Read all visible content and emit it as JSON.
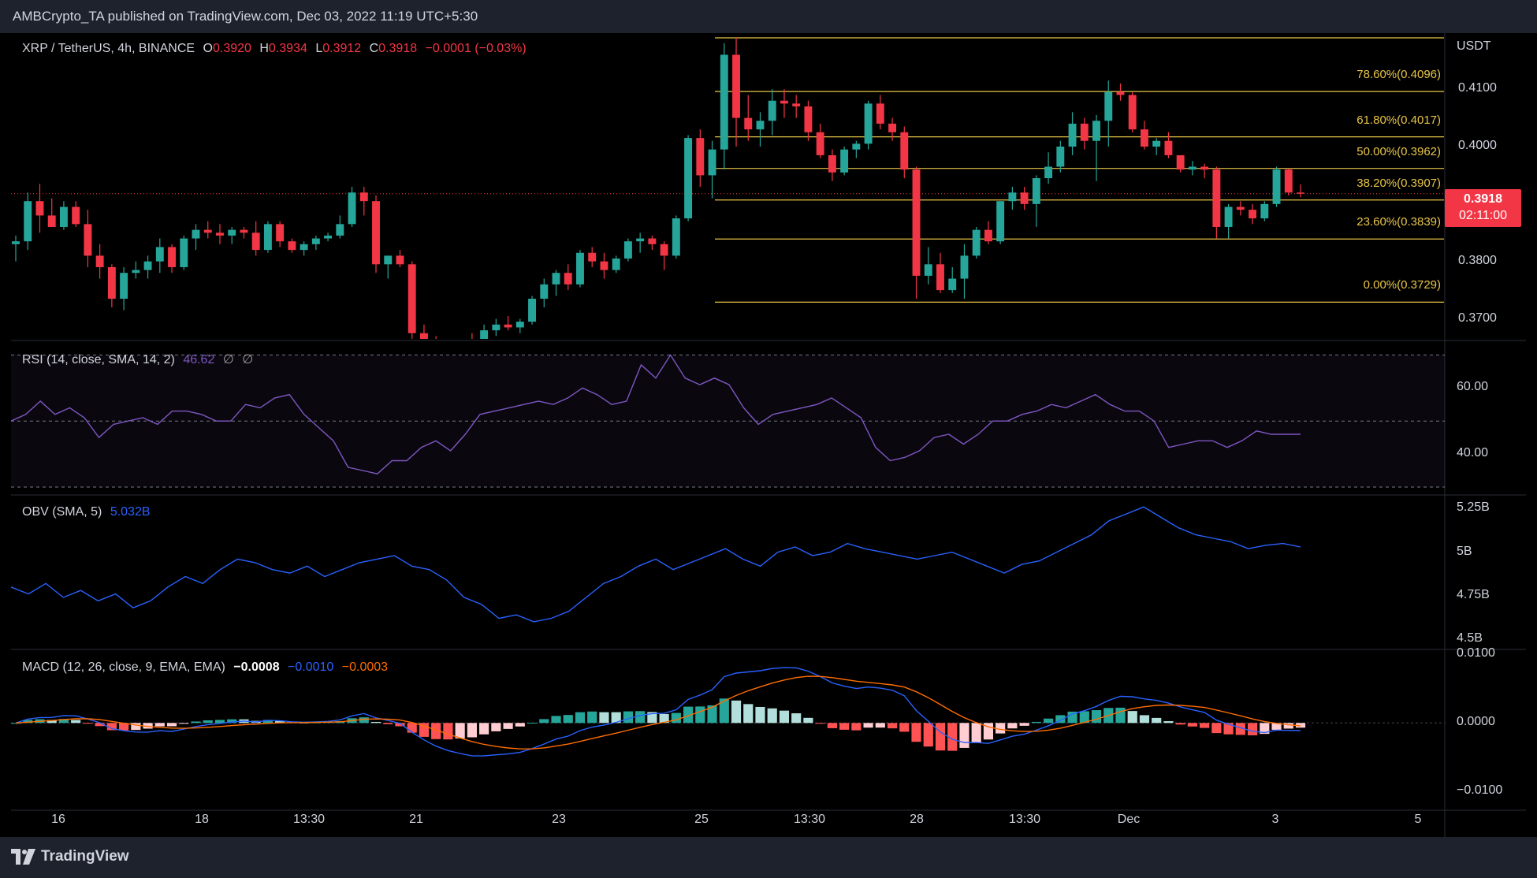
{
  "header": {
    "published_text": "AMBCrypto_TA published on TradingView.com, Dec 03, 2022 11:19 UTC+5:30"
  },
  "footer": {
    "brand": "TradingView"
  },
  "price_legend": {
    "symbol": "XRP / TetherUS, 4h, BINANCE",
    "o_label": "O",
    "o_value": "0.3920",
    "h_label": "H",
    "h_value": "0.3934",
    "l_label": "L",
    "l_value": "0.3912",
    "c_label": "C",
    "c_value": "0.3918",
    "change": "−0.0001 (−0.03%)"
  },
  "rsi_legend": {
    "label": "RSI (14, close, SMA, 14, 2)",
    "value": "46.62",
    "na1": "∅",
    "na2": "∅"
  },
  "obv_legend": {
    "label": "OBV (SMA, 5)",
    "value": "5.032B"
  },
  "macd_legend": {
    "label": "MACD (12, 26, close, 9, EMA, EMA)",
    "hist": "−0.0008",
    "macd": "−0.0010",
    "signal": "−0.0003"
  },
  "last_price_badge": {
    "price": "0.3918",
    "countdown": "02:11:00"
  },
  "colors": {
    "up": "#26a69a",
    "down": "#f23645",
    "fib": "#e8c547",
    "rsi": "#7e57c2",
    "obv": "#2962ff",
    "macd": "#2962ff",
    "signal": "#ff6d00",
    "hist_up_strong": "#26a69a",
    "hist_up_weak": "#b2dfdb",
    "hist_down_strong": "#ff5252",
    "hist_down_weak": "#ffcdd2"
  },
  "chart_data": [
    {
      "type": "candlestick",
      "title": "XRP / TetherUS, 4h, BINANCE",
      "currency": "USDT",
      "ylim": [
        0.3665,
        0.4195
      ],
      "y_ticks": [
        "0.4100",
        "0.4000",
        "0.3800",
        "0.3700"
      ],
      "x_ticks": [
        "16",
        "18",
        "13:30",
        "21",
        "23",
        "25",
        "13:30",
        "28",
        "13:30",
        "Dec",
        "3",
        "5"
      ],
      "fib_levels": [
        {
          "label": "78.60%(0.4096)",
          "value": 0.4096
        },
        {
          "label": "61.80%(0.4017)",
          "value": 0.4017
        },
        {
          "label": "50.00%(0.3962)",
          "value": 0.3962
        },
        {
          "label": "38.20%(0.3907)",
          "value": 0.3907
        },
        {
          "label": "23.60%(0.3839)",
          "value": 0.3839
        },
        {
          "label": "0.00%(0.3729)",
          "value": 0.3729
        }
      ],
      "last_price": 0.3918,
      "candles_ohlc": [
        [
          0.383,
          0.3845,
          0.38,
          0.3835
        ],
        [
          0.3835,
          0.392,
          0.382,
          0.3905
        ],
        [
          0.3905,
          0.3935,
          0.385,
          0.388
        ],
        [
          0.388,
          0.391,
          0.386,
          0.386
        ],
        [
          0.386,
          0.3905,
          0.3855,
          0.3895
        ],
        [
          0.3895,
          0.3905,
          0.386,
          0.3865
        ],
        [
          0.3865,
          0.389,
          0.379,
          0.381
        ],
        [
          0.381,
          0.383,
          0.377,
          0.379
        ],
        [
          0.379,
          0.3795,
          0.372,
          0.3735
        ],
        [
          0.3735,
          0.379,
          0.3715,
          0.378
        ],
        [
          0.378,
          0.38,
          0.377,
          0.3785
        ],
        [
          0.3785,
          0.381,
          0.377,
          0.38
        ],
        [
          0.38,
          0.384,
          0.378,
          0.3825
        ],
        [
          0.3825,
          0.383,
          0.378,
          0.379
        ],
        [
          0.379,
          0.3845,
          0.3785,
          0.384
        ],
        [
          0.384,
          0.3865,
          0.382,
          0.3855
        ],
        [
          0.3855,
          0.387,
          0.384,
          0.385
        ],
        [
          0.385,
          0.3865,
          0.383,
          0.3845
        ],
        [
          0.3845,
          0.386,
          0.383,
          0.3855
        ],
        [
          0.3855,
          0.386,
          0.384,
          0.385
        ],
        [
          0.385,
          0.387,
          0.381,
          0.382
        ],
        [
          0.382,
          0.387,
          0.3815,
          0.3865
        ],
        [
          0.3865,
          0.387,
          0.3825,
          0.3835
        ],
        [
          0.3835,
          0.384,
          0.3815,
          0.382
        ],
        [
          0.382,
          0.3835,
          0.381,
          0.383
        ],
        [
          0.383,
          0.3845,
          0.382,
          0.384
        ],
        [
          0.384,
          0.385,
          0.3835,
          0.3845
        ],
        [
          0.3845,
          0.388,
          0.384,
          0.3865
        ],
        [
          0.3865,
          0.393,
          0.386,
          0.392
        ],
        [
          0.392,
          0.393,
          0.388,
          0.3905
        ],
        [
          0.3905,
          0.3915,
          0.378,
          0.3795
        ],
        [
          0.3795,
          0.381,
          0.377,
          0.381
        ],
        [
          0.381,
          0.382,
          0.379,
          0.3795
        ],
        [
          0.3795,
          0.38,
          0.366,
          0.3675
        ],
        [
          0.3675,
          0.369,
          0.365,
          0.366
        ],
        [
          0.366,
          0.367,
          0.364,
          0.365
        ],
        [
          0.365,
          0.3665,
          0.364,
          0.3655
        ],
        [
          0.3655,
          0.3665,
          0.365,
          0.366
        ],
        [
          0.366,
          0.3675,
          0.3645,
          0.365
        ],
        [
          0.365,
          0.369,
          0.3645,
          0.368
        ],
        [
          0.368,
          0.37,
          0.367,
          0.369
        ],
        [
          0.369,
          0.3705,
          0.368,
          0.3685
        ],
        [
          0.3685,
          0.37,
          0.3675,
          0.3695
        ],
        [
          0.3695,
          0.374,
          0.369,
          0.3735
        ],
        [
          0.3735,
          0.377,
          0.372,
          0.376
        ],
        [
          0.376,
          0.3785,
          0.374,
          0.378
        ],
        [
          0.378,
          0.3795,
          0.375,
          0.376
        ],
        [
          0.376,
          0.382,
          0.3755,
          0.3815
        ],
        [
          0.3815,
          0.3825,
          0.379,
          0.38
        ],
        [
          0.38,
          0.3815,
          0.377,
          0.3785
        ],
        [
          0.3785,
          0.381,
          0.378,
          0.3805
        ],
        [
          0.3805,
          0.384,
          0.38,
          0.3835
        ],
        [
          0.3835,
          0.385,
          0.3815,
          0.384
        ],
        [
          0.384,
          0.3845,
          0.382,
          0.383
        ],
        [
          0.383,
          0.3835,
          0.3785,
          0.381
        ],
        [
          0.381,
          0.388,
          0.3805,
          0.3875
        ],
        [
          0.3875,
          0.402,
          0.387,
          0.4015
        ],
        [
          0.4015,
          0.403,
          0.393,
          0.395
        ],
        [
          0.395,
          0.401,
          0.391,
          0.3995
        ],
        [
          0.3995,
          0.418,
          0.396,
          0.416
        ],
        [
          0.416,
          0.419,
          0.4,
          0.405
        ],
        [
          0.405,
          0.409,
          0.401,
          0.403
        ],
        [
          0.403,
          0.406,
          0.4,
          0.4045
        ],
        [
          0.4045,
          0.41,
          0.402,
          0.408
        ],
        [
          0.408,
          0.41,
          0.405,
          0.4075
        ],
        [
          0.4075,
          0.409,
          0.405,
          0.407
        ],
        [
          0.407,
          0.408,
          0.401,
          0.4025
        ],
        [
          0.4025,
          0.404,
          0.398,
          0.3985
        ],
        [
          0.3985,
          0.3995,
          0.394,
          0.3955
        ],
        [
          0.3955,
          0.4,
          0.395,
          0.3995
        ],
        [
          0.3995,
          0.401,
          0.398,
          0.4005
        ],
        [
          0.4005,
          0.408,
          0.3995,
          0.4075
        ],
        [
          0.4075,
          0.409,
          0.403,
          0.404
        ],
        [
          0.404,
          0.405,
          0.401,
          0.4025
        ],
        [
          0.4025,
          0.4035,
          0.3945,
          0.396
        ],
        [
          0.396,
          0.3965,
          0.3735,
          0.3775
        ],
        [
          0.3775,
          0.3825,
          0.376,
          0.3795
        ],
        [
          0.3795,
          0.3815,
          0.3745,
          0.375
        ],
        [
          0.375,
          0.379,
          0.3745,
          0.377
        ],
        [
          0.377,
          0.383,
          0.3735,
          0.381
        ],
        [
          0.381,
          0.386,
          0.3805,
          0.3855
        ],
        [
          0.3855,
          0.387,
          0.383,
          0.3835
        ],
        [
          0.3835,
          0.3905,
          0.383,
          0.3905
        ],
        [
          0.3905,
          0.393,
          0.389,
          0.392
        ],
        [
          0.392,
          0.393,
          0.389,
          0.39
        ],
        [
          0.39,
          0.395,
          0.386,
          0.3945
        ],
        [
          0.3945,
          0.399,
          0.3935,
          0.3965
        ],
        [
          0.3965,
          0.401,
          0.3955,
          0.4
        ],
        [
          0.4,
          0.406,
          0.3985,
          0.404
        ],
        [
          0.404,
          0.405,
          0.3995,
          0.401
        ],
        [
          0.401,
          0.4055,
          0.394,
          0.4045
        ],
        [
          0.4045,
          0.4115,
          0.4,
          0.4095
        ],
        [
          0.4095,
          0.411,
          0.408,
          0.409
        ],
        [
          0.409,
          0.4095,
          0.4025,
          0.403
        ],
        [
          0.403,
          0.4045,
          0.3995,
          0.4
        ],
        [
          0.4,
          0.4015,
          0.3985,
          0.401
        ],
        [
          0.401,
          0.4025,
          0.398,
          0.3985
        ],
        [
          0.3985,
          0.3985,
          0.3955,
          0.396
        ],
        [
          0.396,
          0.3975,
          0.395,
          0.3965
        ],
        [
          0.3965,
          0.397,
          0.3945,
          0.396
        ],
        [
          0.396,
          0.3965,
          0.384,
          0.386
        ],
        [
          0.386,
          0.39,
          0.384,
          0.3895
        ],
        [
          0.3895,
          0.3905,
          0.388,
          0.389
        ],
        [
          0.389,
          0.39,
          0.3865,
          0.3875
        ],
        [
          0.3875,
          0.3905,
          0.387,
          0.39
        ],
        [
          0.39,
          0.3965,
          0.3895,
          0.396
        ],
        [
          0.396,
          0.3962,
          0.3915,
          0.392
        ],
        [
          0.392,
          0.3934,
          0.3912,
          0.3918
        ]
      ]
    },
    {
      "type": "line",
      "title": "RSI (14, close, SMA, 14, 2)",
      "ylim": [
        30,
        72
      ],
      "y_ticks": [
        "60.00",
        "40.00"
      ],
      "bands": [
        70,
        50,
        30
      ],
      "values": [
        50,
        52,
        56,
        52,
        54,
        51,
        45,
        49,
        50,
        51,
        49,
        53,
        53,
        52,
        50,
        50,
        55,
        54,
        57,
        58,
        52,
        48,
        44,
        36,
        35,
        34,
        38,
        38,
        42,
        44,
        41,
        46,
        52,
        53,
        54,
        55,
        56,
        55,
        57,
        60,
        58,
        55,
        56,
        67,
        63,
        70,
        63,
        61,
        63,
        61,
        54,
        49,
        52,
        53,
        54,
        55,
        57,
        54,
        51,
        42,
        38,
        39,
        41,
        45,
        46,
        43,
        46,
        50,
        50,
        52,
        53,
        55,
        54,
        56,
        58,
        55,
        53,
        53,
        50,
        42,
        43,
        44,
        44,
        42,
        44,
        47,
        46,
        46,
        46
      ]
    },
    {
      "type": "line",
      "title": "OBV (SMA, 5)",
      "y_ticks": [
        "5.25B",
        "5B",
        "4.75B",
        "4.5B"
      ],
      "ylim": [
        4.45,
        5.32
      ],
      "values": [
        4.8,
        4.76,
        4.82,
        4.74,
        4.78,
        4.72,
        4.76,
        4.68,
        4.72,
        4.8,
        4.86,
        4.82,
        4.9,
        4.96,
        4.94,
        4.9,
        4.88,
        4.92,
        4.86,
        4.9,
        4.94,
        4.96,
        4.98,
        4.92,
        4.9,
        4.84,
        4.74,
        4.7,
        4.62,
        4.64,
        4.6,
        4.62,
        4.66,
        4.74,
        4.82,
        4.86,
        4.92,
        4.96,
        4.9,
        4.94,
        4.98,
        5.02,
        4.96,
        4.92,
        5.0,
        5.03,
        4.98,
        5.0,
        5.05,
        5.02,
        5.0,
        4.98,
        4.96,
        4.98,
        5.0,
        4.96,
        4.92,
        4.88,
        4.93,
        4.95,
        5.0,
        5.05,
        5.1,
        5.18,
        5.22,
        5.26,
        5.2,
        5.14,
        5.1,
        5.08,
        5.06,
        5.02,
        5.04,
        5.05,
        5.03
      ]
    },
    {
      "type": "bar+line",
      "title": "MACD (12, 26, close, 9, EMA, EMA)",
      "ylim": [
        -0.0125,
        0.0105
      ],
      "y_ticks": [
        "0.0100",
        "0.0000",
        "−0.0100"
      ]
    }
  ]
}
